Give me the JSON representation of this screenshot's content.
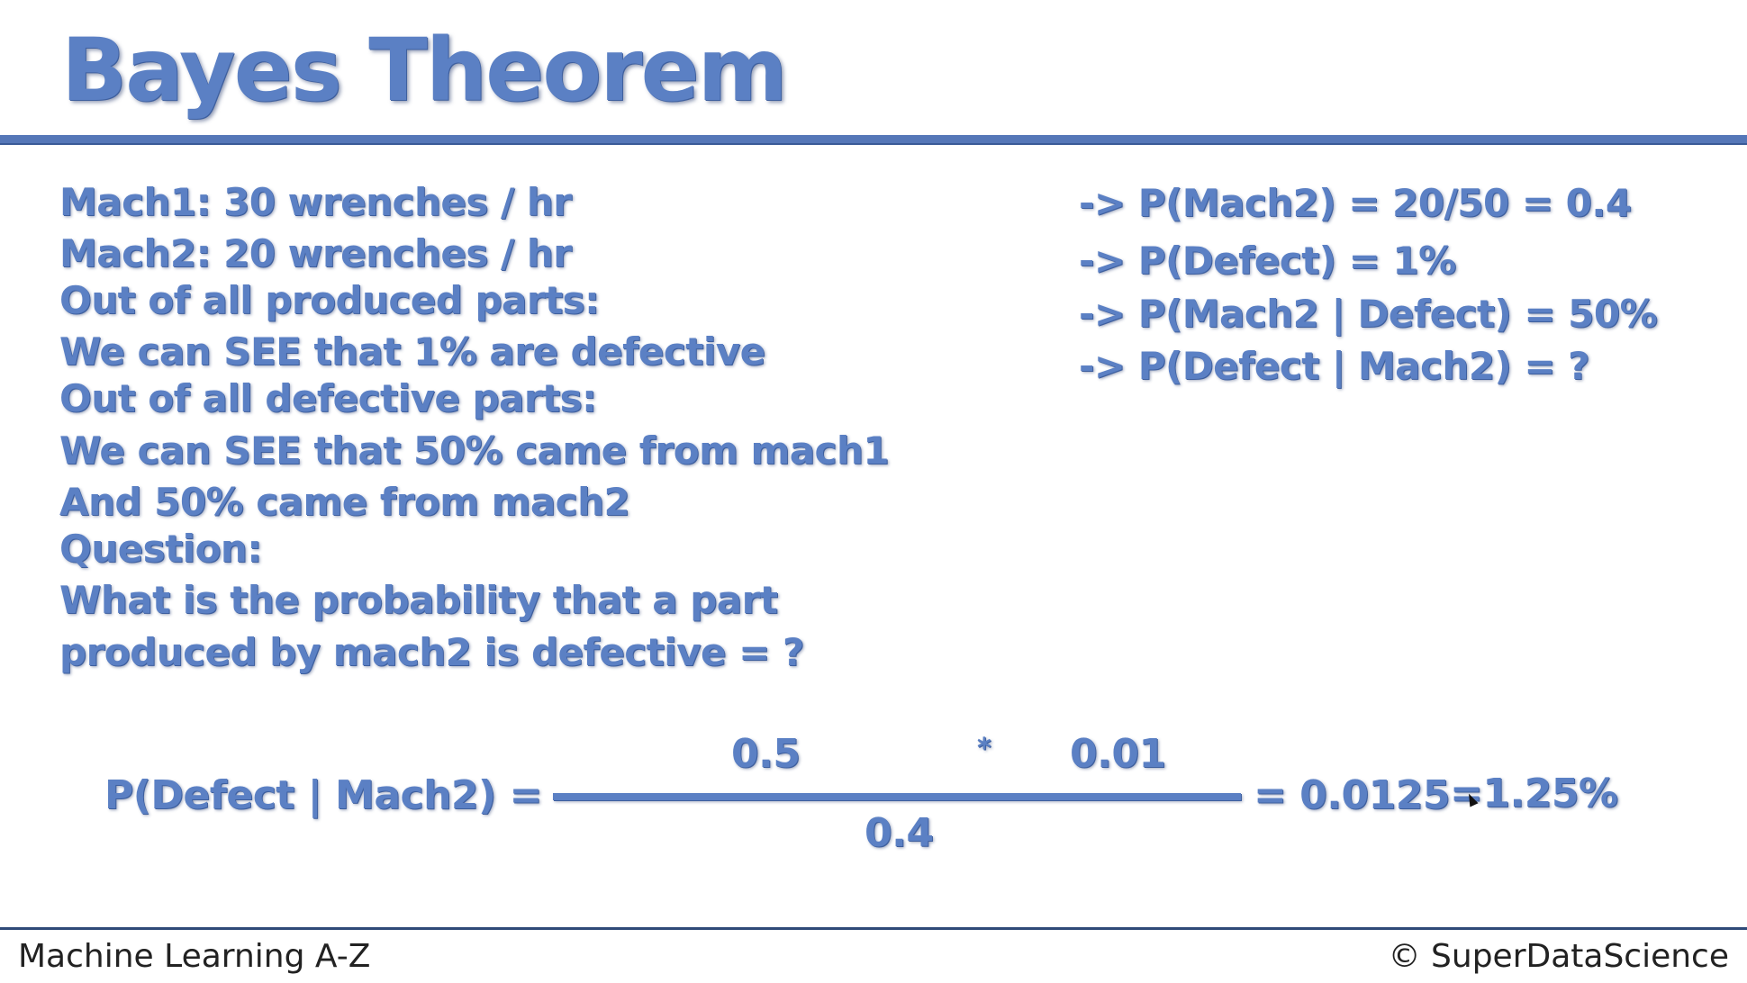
{
  "slide": {
    "title": "Bayes Theorem",
    "left_lines": [
      "Mach1: 30 wrenches / hr",
      "Mach2: 20 wrenches / hr",
      "Out of all produced parts:",
      "We can SEE that 1% are defective",
      "Out of all defective parts:",
      "We can SEE that 50% came from mach1",
      "And 50% came from mach2",
      "Question:",
      "What is the probability that a part",
      "produced by mach2 is defective = ?"
    ],
    "right_lines": [
      "-> P(Mach2) = 20/50 = 0.4",
      "-> P(Defect) = 1%",
      "-> P(Mach2 | Defect) = 50%",
      "-> P(Defect | Mach2) = ?"
    ],
    "formula": {
      "lhs": "P(Defect | Mach2) =",
      "numerator_left": "0.5",
      "operator": "*",
      "numerator_right": "0.01",
      "denominator": "0.4",
      "result": "= 0.0125",
      "result_percent": "=1.25%"
    }
  },
  "footer": {
    "course": "Machine Learning A-Z",
    "copyright": "© SuperDataScience"
  },
  "colors": {
    "accent": "#5b80c4",
    "accent_dark": "#3e5f9e",
    "footer_text": "#222222"
  }
}
